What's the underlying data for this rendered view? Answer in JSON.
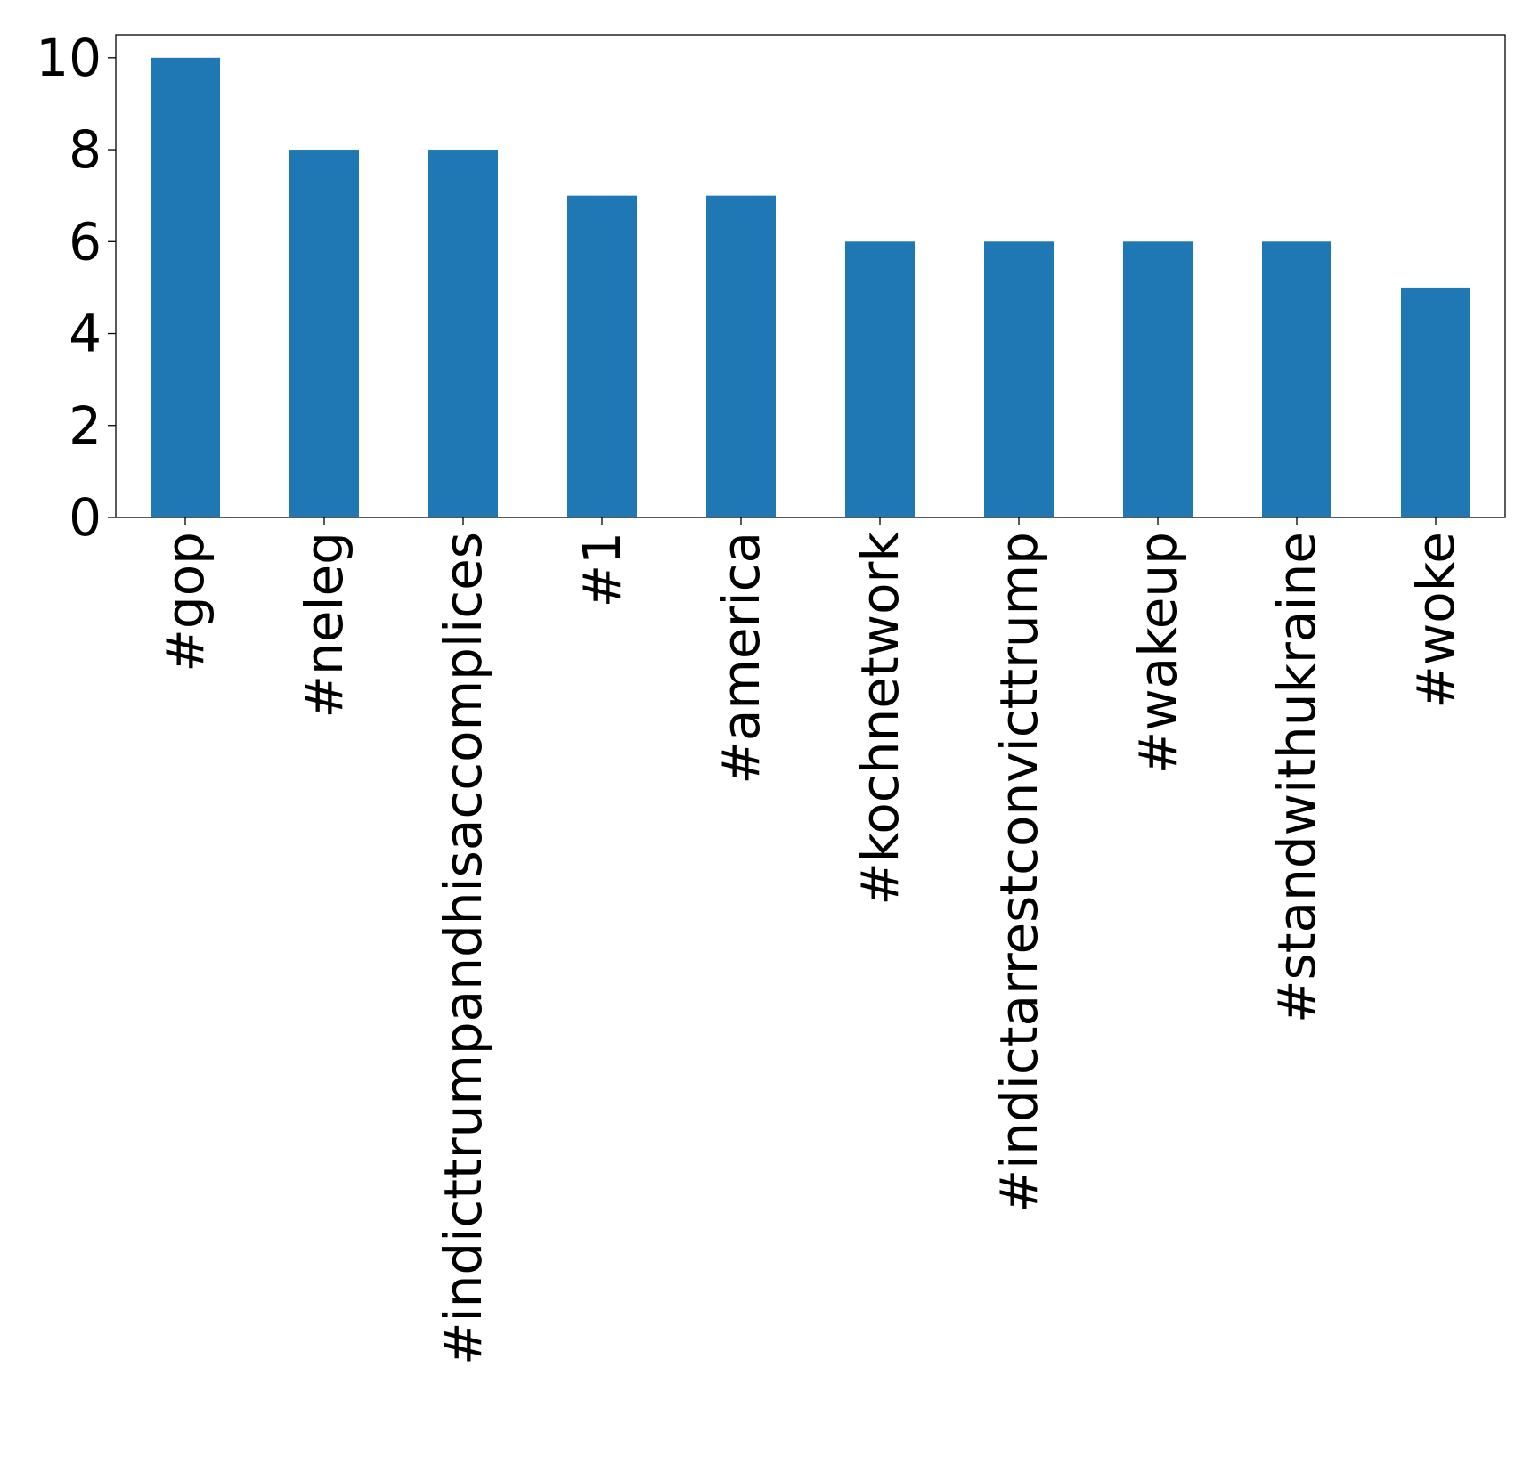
{
  "chart_data": {
    "type": "bar",
    "title": "",
    "xlabel": "",
    "ylabel": "",
    "categories": [
      "#gop",
      "#neleg",
      "#indicttrumpandhisaccomplices",
      "#1",
      "#america",
      "#kochnetwork",
      "#indictarrestconvicttrump",
      "#wakeup",
      "#standwithukraine",
      "#woke"
    ],
    "values": [
      10,
      8,
      8,
      7,
      7,
      6,
      6,
      6,
      6,
      5
    ],
    "ylim": [
      0,
      10.5
    ],
    "yticks": [
      0,
      2,
      4,
      6,
      8,
      10
    ],
    "ytick_labels": [
      "0",
      "2",
      "4",
      "6",
      "8",
      "10"
    ],
    "bar_color": "#1f77b4",
    "grid": false,
    "legend": "none"
  }
}
